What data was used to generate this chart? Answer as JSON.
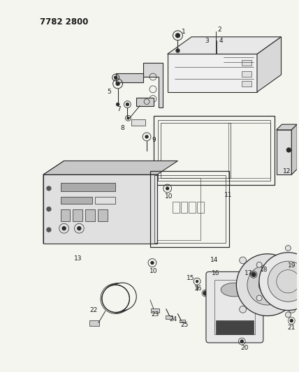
{
  "title": "7782 2800",
  "bg_color": "#f5f5f0",
  "line_color": "#2a2a2a",
  "text_color": "#1a1a1a",
  "title_fontsize": 8.5,
  "label_fontsize": 6.5
}
